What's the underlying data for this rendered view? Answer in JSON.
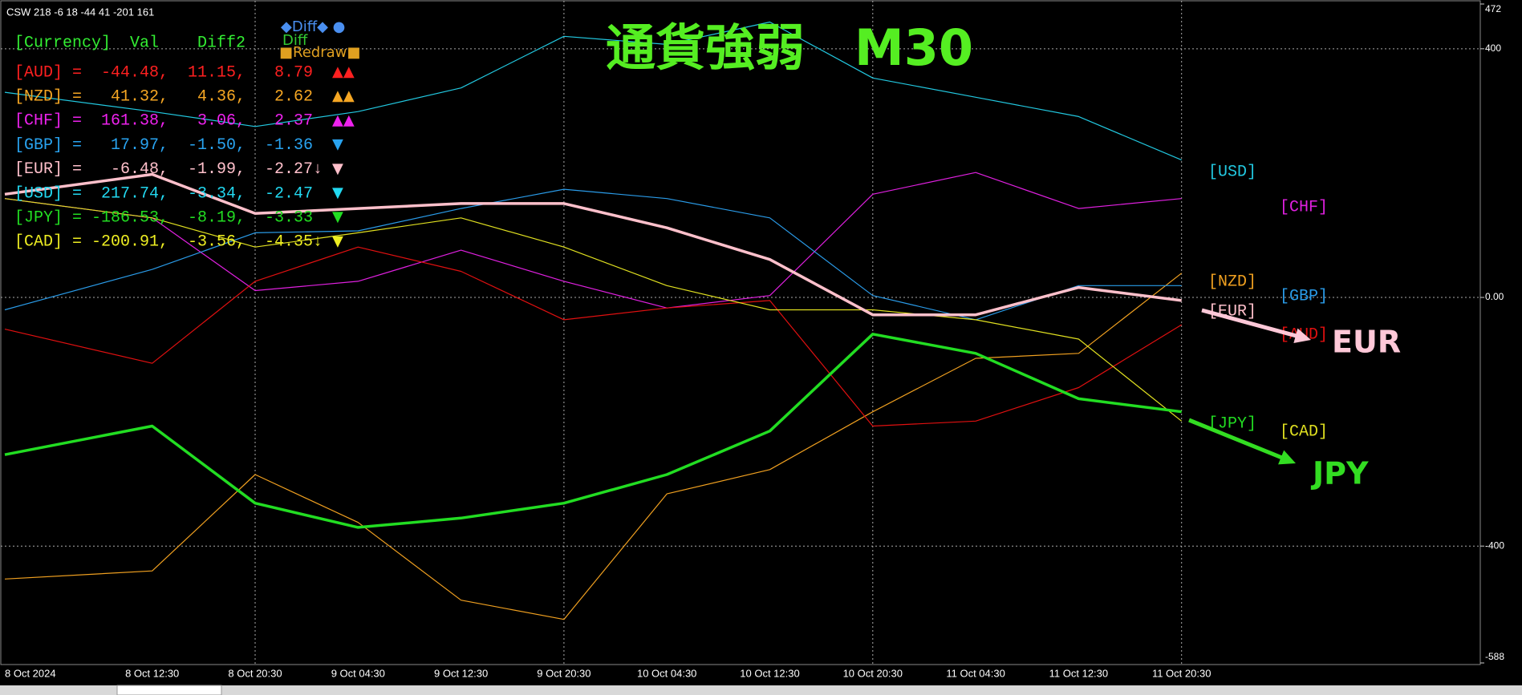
{
  "status": "CSW 218 -6 18 -44 41 -201 161",
  "buttons": {
    "diff_toggle": "◆Diff◆ ●",
    "diff": "Diff",
    "redraw": "■Redraw■"
  },
  "panel": {
    "header": "[Currency]  Val    Diff2",
    "header_color": "#33ee33",
    "rows": [
      {
        "text": "[AUD] =  -44.48,  11.15,   8.79",
        "arrow": "▲▲",
        "color": "#ff2020"
      },
      {
        "text": "[NZD] =   41.32,   4.36,   2.62",
        "arrow": "▲▲",
        "color": "#f5a623"
      },
      {
        "text": "[CHF] =  161.38,   3.06,   2.37",
        "arrow": "▲▲",
        "color": "#ee22ee"
      },
      {
        "text": "[GBP] =   17.97,  -1.50,  -1.36",
        "arrow": "▼",
        "color": "#29a3f0"
      },
      {
        "text": "[EUR] =   -6.48,  -1.99,  -2.27↓",
        "arrow": "▼",
        "color": "#ffc0cb"
      },
      {
        "text": "[USD] =  217.74,  -3.34,  -2.47",
        "arrow": "▼",
        "color": "#22d8f0"
      },
      {
        "text": "[JPY] = -186.53,  -8.19,  -3.33",
        "arrow": "▼",
        "color": "#22dd22"
      },
      {
        "text": "[CAD] = -200.91,  -3.56,  -4.35↓",
        "arrow": "▼",
        "color": "#eeee22"
      }
    ]
  },
  "chart_data": {
    "type": "line",
    "title": "通貨強弱　M30",
    "title_color": "#55ee22",
    "categories": [
      "8 Oct 2024",
      "8 Oct 12:30",
      "8 Oct 20:30",
      "9 Oct 04:30",
      "9 Oct 12:30",
      "9 Oct 20:30",
      "10 Oct 04:30",
      "10 Oct 12:30",
      "10 Oct 20:30",
      "11 Oct 04:30",
      "11 Oct 12:30",
      "11 Oct 20:30"
    ],
    "series": [
      {
        "name": "[USD]",
        "color": "#22c8e0",
        "values": [
          330,
          299,
          275,
          299,
          337,
          420,
          407,
          443,
          353,
          322,
          291,
          221
        ]
      },
      {
        "name": "[CHF]",
        "color": "#e020e0",
        "values": [
          159,
          128,
          11,
          26,
          76,
          26,
          -17,
          3,
          166,
          201,
          143,
          159
        ]
      },
      {
        "name": "[NZD]",
        "color": "#f0a020",
        "values": [
          -453,
          -440,
          -285,
          -362,
          -487,
          -518,
          -316,
          -277,
          -184,
          -98,
          -90,
          39
        ]
      },
      {
        "name": "[GBP]",
        "color": "#2a9be8",
        "values": [
          -20,
          45,
          104,
          107,
          143,
          174,
          159,
          128,
          3,
          -36,
          19,
          19
        ]
      },
      {
        "name": "[AUD]",
        "color": "#e01010",
        "values": [
          -51,
          -106,
          26,
          81,
          42,
          -36,
          -17,
          -5,
          -207,
          -199,
          -145,
          -44
        ]
      },
      {
        "name": "[CAD]",
        "color": "#e0e020",
        "values": [
          159,
          128,
          81,
          104,
          128,
          81,
          19,
          -20,
          -20,
          -36,
          -67,
          -199
        ]
      },
      {
        "name": "[EUR]",
        "color": "#ffc0cb",
        "values": [
          166,
          198,
          135,
          143,
          151,
          151,
          112,
          61,
          -28,
          -28,
          16,
          -5
        ]
      },
      {
        "name": "[JPY]",
        "color": "#22dd22",
        "values": [
          -253,
          -207,
          -331,
          -370,
          -355,
          -331,
          -285,
          -215,
          -59,
          -90,
          -163,
          -184
        ]
      }
    ],
    "ylim": [
      -588,
      472
    ],
    "yticks": [
      472,
      400,
      {
        "value": 0,
        "label": "0.00"
      },
      -400,
      -588
    ],
    "grid": true,
    "annotations": [
      {
        "text": "EUR",
        "color": "#ffc8d8"
      },
      {
        "text": "JPY",
        "color": "#33dd22"
      }
    ]
  }
}
